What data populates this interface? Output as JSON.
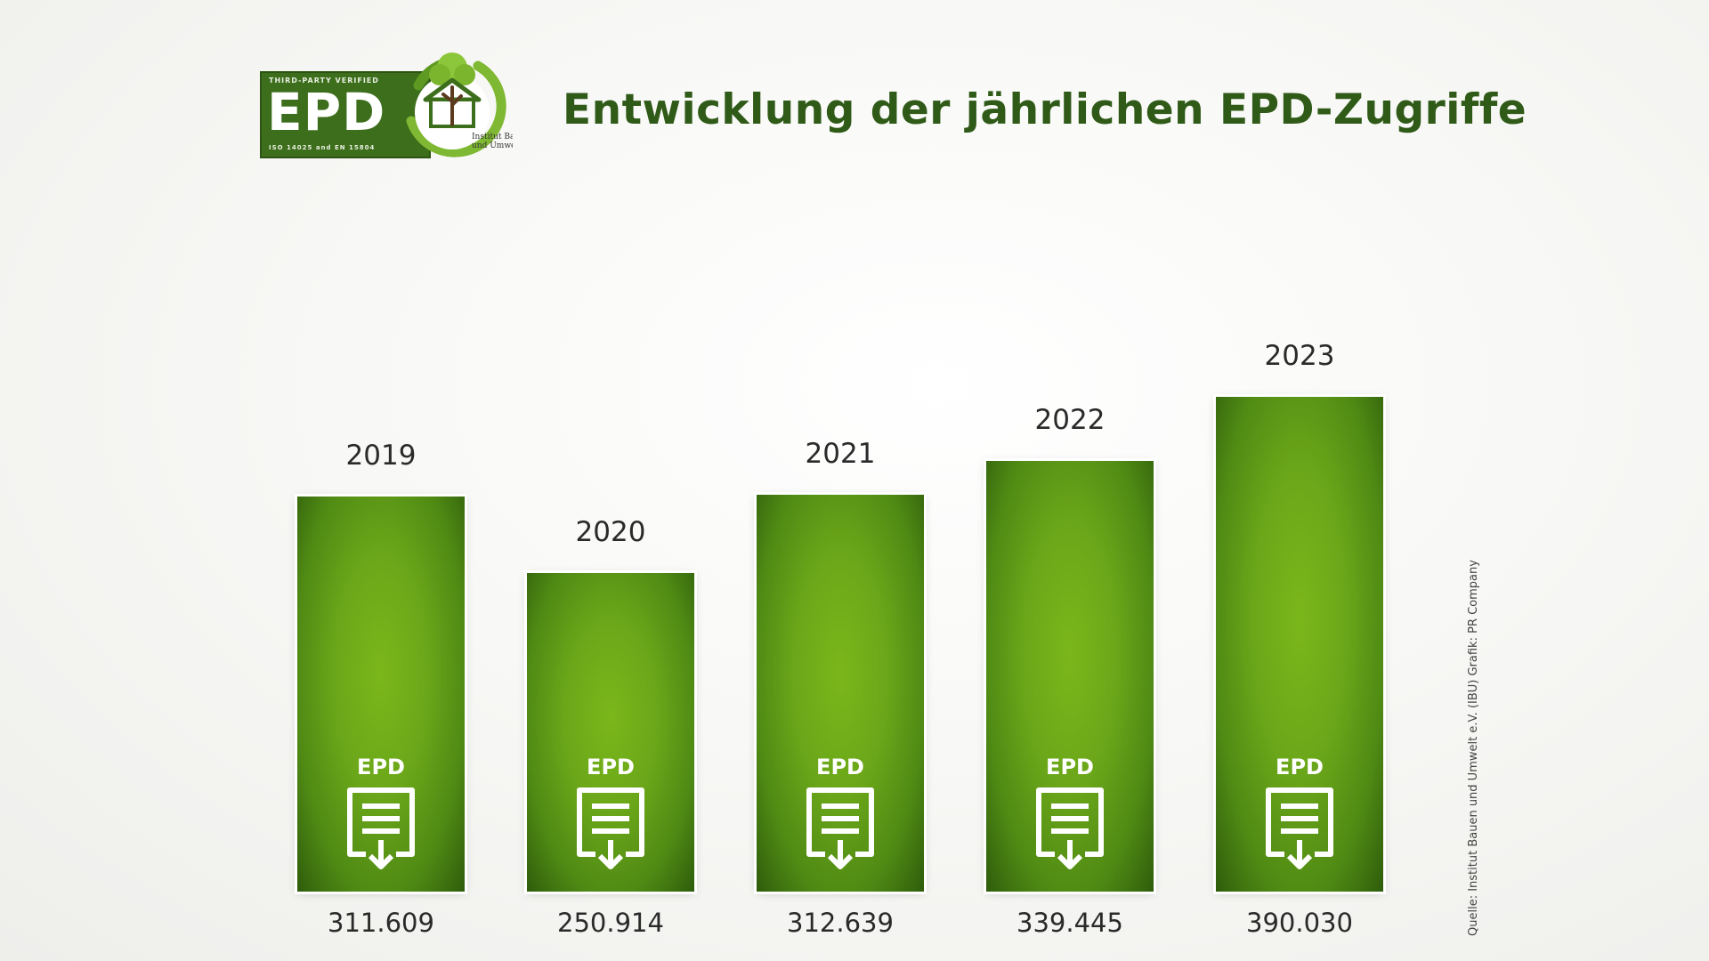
{
  "logo": {
    "top_text": "THIRD-PARTY VERIFIED",
    "main_text": "EPD",
    "bottom_text": "ISO 14025 and EN 15804",
    "seal_text_1": "Institut Bauen",
    "seal_text_2": "und Umwelt e.V."
  },
  "chart_data": {
    "type": "bar",
    "title": "Entwicklung der jährlichen EPD-Zugriffe",
    "categories": [
      "2019",
      "2020",
      "2021",
      "2022",
      "2023"
    ],
    "values": [
      311609,
      250914,
      312639,
      339445,
      390030
    ],
    "value_labels": [
      "311.609",
      "250.914",
      "312.639",
      "339.445",
      "390.030"
    ],
    "bar_icon_label": "EPD",
    "xlabel": "",
    "ylabel": "",
    "grid": false,
    "colors": {
      "bar": "#6aa619",
      "bar_edge": "#2e5c0b",
      "title": "#2f5a17"
    }
  },
  "source": "Quelle: Institut Bauen und Umwelt e.V. (IBU)   Grafik: PR Company",
  "icons": [
    "epd-logo-icon",
    "tree-house-icon",
    "download-document-icon"
  ]
}
